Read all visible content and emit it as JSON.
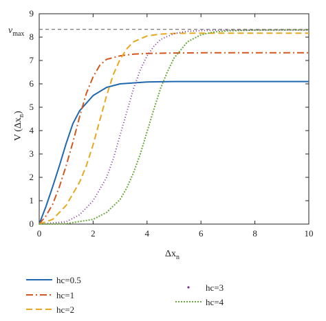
{
  "chart_data": {
    "type": "line",
    "xlabel": {
      "main": "Δx",
      "sub": "n"
    },
    "ylabel": {
      "main": "V (Δx",
      "sub": "n",
      "tail": ")"
    },
    "vmax_label": {
      "main": "v",
      "sub": "max"
    },
    "xlim": [
      0,
      10
    ],
    "ylim": [
      0,
      9
    ],
    "xticks": [
      0,
      2,
      4,
      6,
      8,
      10
    ],
    "yticks": [
      0,
      1,
      2,
      3,
      4,
      5,
      6,
      7,
      8,
      9
    ],
    "vmax": 8.33,
    "grid": false,
    "legend_position": "below",
    "series": [
      {
        "name": "hc=0.5",
        "color": "#1f68b0",
        "style": "solid",
        "x": [
          0,
          0.25,
          0.5,
          0.75,
          1,
          1.25,
          1.5,
          2,
          2.5,
          3,
          4,
          5,
          6,
          7,
          8,
          9,
          10
        ],
        "y": [
          0,
          0.75,
          1.6,
          2.5,
          3.45,
          4.3,
          4.85,
          5.5,
          5.85,
          6.0,
          6.08,
          6.1,
          6.1,
          6.1,
          6.1,
          6.1,
          6.1
        ]
      },
      {
        "name": "hc=1",
        "color": "#d4561e",
        "style": "dashdot",
        "x": [
          0,
          0.25,
          0.5,
          0.75,
          1,
          1.25,
          1.5,
          1.75,
          2,
          2.25,
          2.5,
          3,
          3.5,
          4,
          5,
          6,
          7,
          8,
          9,
          10
        ],
        "y": [
          0,
          0.35,
          0.85,
          1.6,
          2.5,
          3.5,
          4.6,
          5.6,
          6.3,
          6.8,
          7.05,
          7.2,
          7.27,
          7.3,
          7.32,
          7.33,
          7.33,
          7.33,
          7.33,
          7.33
        ]
      },
      {
        "name": "hc=2",
        "color": "#e8a81e",
        "style": "dashed",
        "x": [
          0,
          0.5,
          1,
          1.5,
          1.75,
          2,
          2.25,
          2.5,
          2.75,
          3,
          3.25,
          3.5,
          4,
          4.5,
          5,
          6,
          7,
          8,
          9,
          10
        ],
        "y": [
          0,
          0.2,
          0.8,
          1.8,
          2.5,
          3.4,
          4.45,
          5.5,
          6.4,
          7.05,
          7.5,
          7.8,
          8.05,
          8.13,
          8.16,
          8.17,
          8.17,
          8.17,
          8.17,
          8.17
        ]
      },
      {
        "name": "hc=3",
        "color": "#7a2e94",
        "style": "dotted",
        "x": [
          0,
          1,
          1.5,
          2,
          2.5,
          2.75,
          3,
          3.25,
          3.5,
          3.75,
          4,
          4.25,
          4.5,
          5,
          5.5,
          6,
          7,
          8,
          9,
          10
        ],
        "y": [
          0,
          0.1,
          0.4,
          1.0,
          2.0,
          2.8,
          3.8,
          4.8,
          5.8,
          6.6,
          7.2,
          7.6,
          7.9,
          8.15,
          8.25,
          8.28,
          8.3,
          8.3,
          8.3,
          8.3
        ]
      },
      {
        "name": "hc=4",
        "color": "#6aa83a",
        "style": "shortdash",
        "x": [
          0,
          1,
          2,
          2.5,
          3,
          3.25,
          3.5,
          3.75,
          4,
          4.25,
          4.5,
          4.75,
          5,
          5.5,
          6,
          6.5,
          7,
          8,
          9,
          10
        ],
        "y": [
          0,
          0.02,
          0.2,
          0.5,
          1.05,
          1.55,
          2.2,
          3.0,
          3.95,
          4.9,
          5.8,
          6.5,
          7.1,
          7.8,
          8.1,
          8.22,
          8.27,
          8.3,
          8.31,
          8.31
        ]
      }
    ]
  }
}
